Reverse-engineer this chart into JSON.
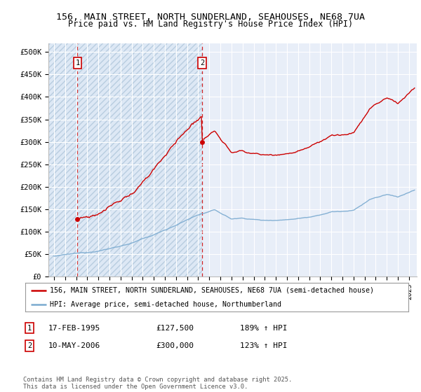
{
  "title_line1": "156, MAIN STREET, NORTH SUNDERLAND, SEAHOUSES, NE68 7UA",
  "title_line2": "Price paid vs. HM Land Registry's House Price Index (HPI)",
  "ylim": [
    0,
    520000
  ],
  "yticks": [
    0,
    50000,
    100000,
    150000,
    200000,
    250000,
    300000,
    350000,
    400000,
    450000,
    500000
  ],
  "ytick_labels": [
    "£0",
    "£50K",
    "£100K",
    "£150K",
    "£200K",
    "£250K",
    "£300K",
    "£350K",
    "£400K",
    "£450K",
    "£500K"
  ],
  "xlim_start": 1992.5,
  "xlim_end": 2025.7,
  "sale1_date": 1995.12,
  "sale1_price": 127500,
  "sale2_date": 2006.36,
  "sale2_price": 300000,
  "property_color": "#cc0000",
  "hpi_color": "#7aaad0",
  "bg_color": "#dde8f5",
  "bg_color_right": "#e8eef8",
  "legend_line1": "156, MAIN STREET, NORTH SUNDERLAND, SEAHOUSES, NE68 7UA (semi-detached house)",
  "legend_line2": "HPI: Average price, semi-detached house, Northumberland",
  "annotation1_date": "17-FEB-1995",
  "annotation1_price": "£127,500",
  "annotation1_hpi": "189% ↑ HPI",
  "annotation2_date": "10-MAY-2006",
  "annotation2_price": "£300,000",
  "annotation2_hpi": "123% ↑ HPI",
  "footer": "Contains HM Land Registry data © Crown copyright and database right 2025.\nThis data is licensed under the Open Government Licence v3.0."
}
